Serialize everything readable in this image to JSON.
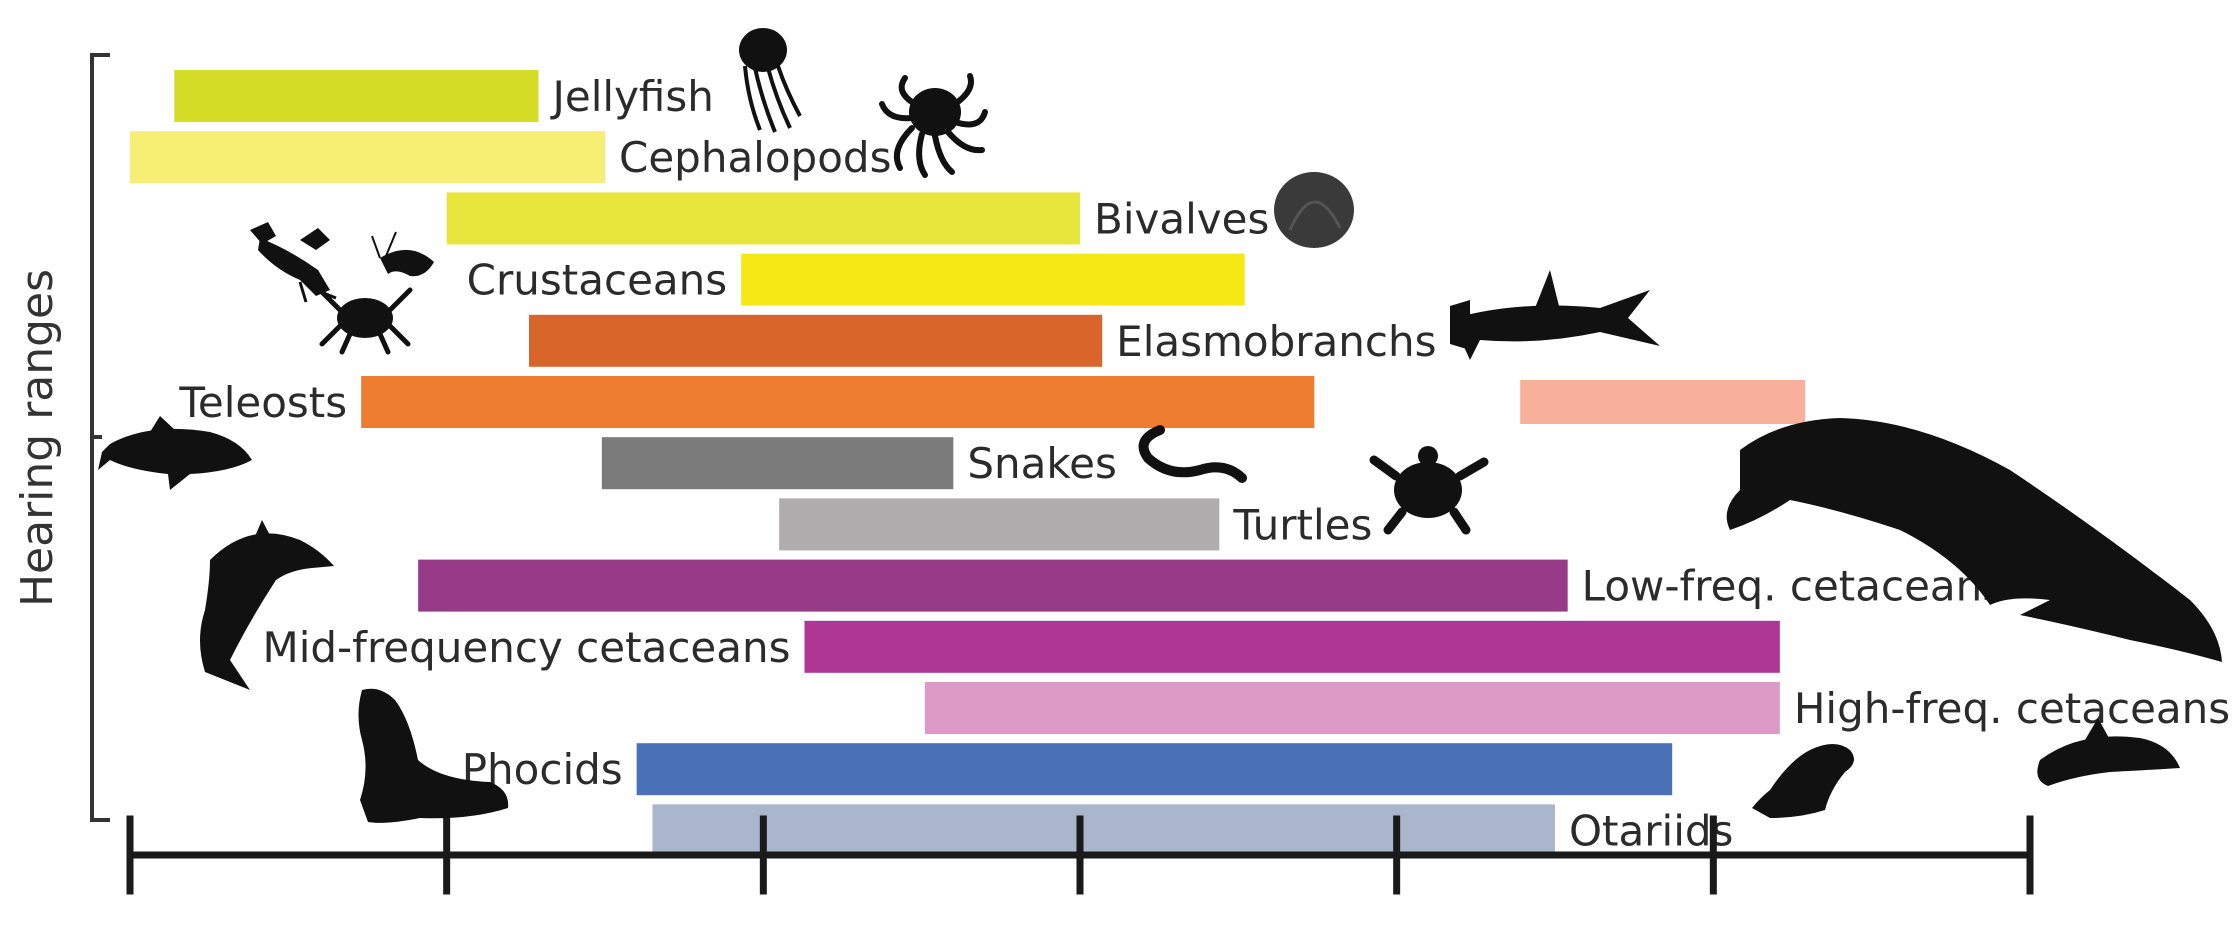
{
  "chart_data": {
    "type": "bar",
    "orientation": "horizontal-range",
    "title": "",
    "ylabel": "Hearing ranges",
    "xlabel": "",
    "xlim": [
      0,
      6
    ],
    "x_ticks": [
      0,
      1,
      2,
      3,
      4,
      5,
      6
    ],
    "x_tick_labels": [],
    "grid": false,
    "legend": "none",
    "series": [
      {
        "label": "Jellyfish",
        "start": 0.14,
        "end": 1.29,
        "color": "#d4dc25",
        "label_side": "right"
      },
      {
        "label": "Cephalopods",
        "start": 0.0,
        "end": 1.5,
        "color": "#f6ef74",
        "label_side": "right"
      },
      {
        "label": "Bivalves",
        "start": 1.0,
        "end": 3.0,
        "color": "#e8e63c",
        "label_side": "right"
      },
      {
        "label": "Crustaceans",
        "start": 1.93,
        "end": 3.52,
        "color": "#f6e815",
        "label_side": "left"
      },
      {
        "label": "Elasmobranchs",
        "start": 1.26,
        "end": 3.07,
        "color": "#d9652a",
        "label_side": "right"
      },
      {
        "label": "Teleosts",
        "start": 0.73,
        "end": 3.74,
        "color": "#ee7d31",
        "label_side": "left"
      },
      {
        "label": "Snakes",
        "start": 1.49,
        "end": 2.6,
        "color": "#7a7a7a",
        "label_side": "right"
      },
      {
        "label": "Turtles",
        "start": 2.05,
        "end": 3.44,
        "color": "#afadad",
        "label_side": "right"
      },
      {
        "label": "Low-freq. cetaceans",
        "start": 0.91,
        "end": 4.54,
        "color": "#973a88",
        "label_side": "right"
      },
      {
        "label": "Mid-frequency cetaceans",
        "start": 2.13,
        "end": 5.21,
        "color": "#ae3796",
        "label_side": "left"
      },
      {
        "label": "High-freq. cetaceans",
        "start": 2.51,
        "end": 5.21,
        "color": "#dd9ac6",
        "label_side": "right"
      },
      {
        "label": "Phocids",
        "start": 1.6,
        "end": 4.87,
        "color": "#4a71b8",
        "label_side": "left"
      },
      {
        "label": "Otariids",
        "start": 1.65,
        "end": 4.5,
        "color": "#aab6cb",
        "label_side": "right"
      }
    ],
    "extra_ranges": [
      {
        "start": 4.39,
        "end": 5.29,
        "color": "#f7b19a",
        "row": 5
      }
    ]
  },
  "colors": {
    "axis": "#1a1a1a",
    "text": "#2b2b2b",
    "silhouette": "#111111"
  },
  "icons": [
    "jellyfish-icon",
    "octopus-icon",
    "shell-icon",
    "lobster-icon",
    "shrimp-icon",
    "crab-icon",
    "hammerhead-shark-icon",
    "fish-icon",
    "snake-icon",
    "turtle-icon",
    "dolphin-icon",
    "whale-icon",
    "seal-icon",
    "sea-lion-icon",
    "porpoise-icon"
  ]
}
